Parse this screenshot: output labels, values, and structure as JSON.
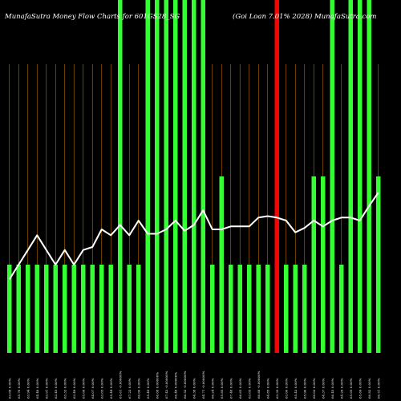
{
  "chart_data": {
    "type": "bar",
    "title": "MunafaSutra  Money Flow  Charts for 601GS28_SG",
    "subtitle": "(Goi   Loan   7.01% 2028) MunafaSutra.com",
    "background_color": "#000000",
    "grid_color": "#ff9900",
    "line_color": "#ffffff",
    "bar_colors": {
      "green": "#33ff33",
      "red": "#ff0000"
    },
    "categories": [
      "Wed 17 Dec 2025",
      "Tue 16 Dec 2025",
      "Mon 15 Dec 2025",
      "Fri 12 Dec 2025",
      "Thu 11 Dec 2025",
      "Wed 10 Dec 2025",
      "Tue 09 Dec 2025",
      "Mon 08 Dec 2025",
      "Fri 05 Dec 2025",
      "Thu 04 Dec 2025",
      "Wed 03 Dec 2025",
      "Tue 02 Dec 2025",
      "Mon 01 Dec 2025",
      "Fri 28 Nov 2025",
      "Thu 27 Nov 2025",
      "Wed 26 Nov 2025",
      "Tue 25 Nov 2025",
      "Mon 24 Nov 2025",
      "Fri 21 Nov 2025",
      "Thu 20 Nov 2025",
      "Wed 19 Nov 2025",
      "Tue 18 Nov 2025",
      "Mon 17 Nov 2025",
      "Fri 14 Nov 2025",
      "Thu 13 Nov 2025",
      "Wed 12 Nov 2025",
      "Tue 11 Nov 2025",
      "Mon 10 Nov 2025",
      "Fri 07 Nov 2025",
      "Thu 06 Nov 2025",
      "Wed 05 Nov 2025",
      "Tue 04 Nov 2025",
      "Mon 03 Nov 2025",
      "Fri 31 Oct 2025",
      "Thu 30 Oct 2025",
      "Wed 29 Oct 2025",
      "Tue 28 Oct 2025",
      "Mon 27 Oct 2025",
      "Fri 24 Oct 2025",
      "Thu 23 Oct 2025",
      "Wed 22 Oct 2025"
    ],
    "x_tick_labels": [
      "63.08 0.00%",
      "65.76 0.00%",
      "63.94 0.00%",
      "64.48 0.00%",
      "63.91 0.00%",
      "63.45 0.00%",
      "63.33 0.00%",
      "63.49 0.00%",
      "65.08 0.00%",
      "64.07 0.00%",
      "63.05 0.00%",
      "65.44 0.00%",
      "65.61 -0.00000%",
      "67.23 0.00%",
      "66.00 0.00%",
      "65.49 0.00%",
      "66.08 0.00000%",
      "67.43 -0.00000%",
      "66.48 0.00000%",
      "66.52 -0.00000%",
      "64.38 0.00%",
      "64.71 -0.00000%",
      "66.24 0.00%",
      "65.85 0.00%",
      "67.48 0.00%",
      "66.65 0.00%",
      "63.05 0.00%",
      "66.68 -0.00000%",
      "64.85 0.00%",
      "63.35 0.00%",
      "63.00 0.00%",
      "65.43 0.00%",
      "65.90 0.00%",
      "66.02 0.00%",
      "64.37 0.00%",
      "66.45 0.00%",
      "64.29 0.00%",
      "65.05 0.00%",
      "65.69 0.00%",
      "66.82 0.00%",
      "66.51 0.00%"
    ],
    "series": [
      {
        "values": [
          1,
          1,
          1,
          1,
          1,
          1,
          1,
          1,
          1,
          1,
          1,
          1,
          4,
          1,
          1,
          4,
          4,
          4,
          4,
          4,
          4,
          4,
          1,
          2,
          1,
          1,
          1,
          1,
          1,
          4,
          1,
          1,
          1,
          2,
          2,
          4,
          1,
          4,
          4,
          4,
          2
        ],
        "colors": [
          "green",
          "green",
          "green",
          "green",
          "green",
          "green",
          "green",
          "green",
          "green",
          "green",
          "green",
          "green",
          "green",
          "green",
          "green",
          "green",
          "green",
          "green",
          "green",
          "green",
          "green",
          "green",
          "green",
          "green",
          "green",
          "green",
          "green",
          "green",
          "green",
          "red",
          "green",
          "green",
          "green",
          "green",
          "green",
          "green",
          "green",
          "green",
          "green",
          "green",
          "green"
        ]
      },
      {
        "values": [
          0.5,
          0.6,
          0.7,
          0.8,
          0.7,
          0.6,
          0.7,
          0.6,
          0.7,
          0.72,
          0.84,
          0.8,
          0.87,
          0.8,
          0.9,
          0.81,
          0.81,
          0.84,
          0.9,
          0.83,
          0.87,
          0.97,
          0.84,
          0.84,
          0.86,
          0.86,
          0.86,
          0.92,
          0.93,
          0.92,
          0.9,
          0.82,
          0.85,
          0.9,
          0.86,
          0.9,
          0.92,
          0.92,
          0.9,
          1.0,
          1.09
        ]
      }
    ],
    "ylim": [
      0,
      4
    ],
    "line_ylim": [
      0,
      2.4
    ],
    "grid": "vertical"
  }
}
